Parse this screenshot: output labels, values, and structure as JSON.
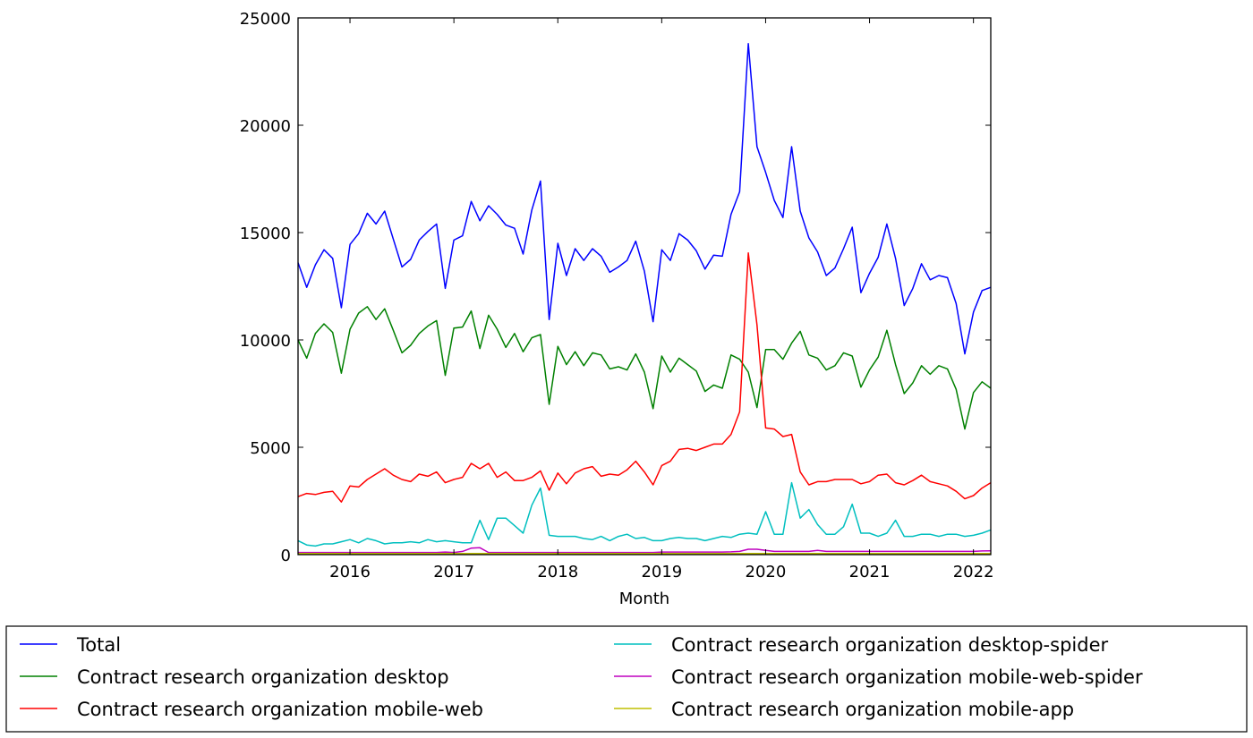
{
  "chart_data": {
    "type": "line",
    "title": "",
    "xlabel": "Month",
    "ylabel": "",
    "ylim": [
      0,
      25000
    ],
    "x_start": "2015-07",
    "x_end": "2022-03",
    "x_ticks": [
      "2016",
      "2017",
      "2018",
      "2019",
      "2020",
      "2021",
      "2022"
    ],
    "x_tick_month_index": [
      6,
      18,
      30,
      42,
      54,
      66,
      78
    ],
    "y_ticks": [
      "0",
      "5000",
      "10000",
      "15000",
      "20000",
      "25000"
    ],
    "y_tick_values": [
      0,
      5000,
      10000,
      15000,
      20000,
      25000
    ],
    "grid": false,
    "legend_placement": "below, two columns",
    "series": [
      {
        "name": "Total",
        "color": "#0000ff",
        "values": [
          13600,
          12450,
          13500,
          14200,
          13800,
          11500,
          14450,
          14950,
          15900,
          15400,
          16000,
          14700,
          13400,
          13750,
          14650,
          15050,
          15400,
          12400,
          14650,
          14850,
          16450,
          15550,
          16250,
          15850,
          15350,
          15200,
          14000,
          16050,
          17400,
          10950,
          14500,
          13000,
          14250,
          13700,
          14250,
          13900,
          13150,
          13400,
          13700,
          14600,
          13200,
          10850,
          14200,
          13700,
          14950,
          14650,
          14150,
          13300,
          13950,
          13900,
          15850,
          16900,
          23800,
          19000,
          17800,
          16500,
          15700,
          19000,
          16000,
          14750,
          14100,
          13000,
          13350,
          14250,
          15250,
          12200,
          13100,
          13850,
          15400,
          13800,
          11600,
          12400,
          13550,
          12800,
          13000,
          12900,
          11700,
          9350,
          11300,
          12300,
          12450
        ]
      },
      {
        "name": "Contract research organization desktop",
        "color": "#008000",
        "values": [
          10000,
          9150,
          10300,
          10750,
          10350,
          8450,
          10500,
          11250,
          11550,
          10950,
          11450,
          10450,
          9400,
          9750,
          10300,
          10650,
          10900,
          8350,
          10550,
          10600,
          11350,
          9600,
          11150,
          10500,
          9650,
          10300,
          9450,
          10100,
          10250,
          7000,
          9700,
          8850,
          9450,
          8800,
          9400,
          9300,
          8650,
          8750,
          8600,
          9350,
          8500,
          6800,
          9250,
          8500,
          9150,
          8850,
          8550,
          7600,
          7900,
          7750,
          9300,
          9100,
          8500,
          6850,
          9550,
          9550,
          9100,
          9850,
          10400,
          9300,
          9150,
          8600,
          8800,
          9400,
          9250,
          7800,
          8600,
          9200,
          10450,
          8850,
          7500,
          8000,
          8800,
          8400,
          8800,
          8650,
          7700,
          5850,
          7550,
          8050,
          7750
        ]
      },
      {
        "name": "Contract research organization mobile-web",
        "color": "#ff0000",
        "values": [
          2700,
          2850,
          2800,
          2900,
          2950,
          2450,
          3200,
          3150,
          3500,
          3750,
          4000,
          3700,
          3500,
          3400,
          3750,
          3650,
          3850,
          3350,
          3500,
          3600,
          4250,
          4000,
          4250,
          3600,
          3850,
          3450,
          3450,
          3600,
          3900,
          3000,
          3800,
          3300,
          3800,
          4000,
          4100,
          3650,
          3750,
          3700,
          3950,
          4350,
          3850,
          3250,
          4150,
          4350,
          4900,
          4950,
          4850,
          5000,
          5150,
          5150,
          5600,
          6650,
          14050,
          10700,
          5900,
          5850,
          5500,
          5600,
          3850,
          3250,
          3400,
          3400,
          3500,
          3500,
          3500,
          3300,
          3400,
          3700,
          3750,
          3350,
          3250,
          3450,
          3700,
          3400,
          3300,
          3200,
          2950,
          2600,
          2750,
          3100,
          3350
        ]
      },
      {
        "name": "Contract research organization desktop-spider",
        "color": "#00bfbf",
        "values": [
          650,
          450,
          400,
          500,
          500,
          600,
          700,
          550,
          750,
          650,
          500,
          550,
          550,
          600,
          550,
          700,
          600,
          650,
          600,
          550,
          550,
          1600,
          700,
          1700,
          1700,
          1350,
          1000,
          2300,
          3100,
          900,
          850,
          850,
          850,
          750,
          700,
          850,
          650,
          850,
          950,
          750,
          800,
          650,
          650,
          750,
          800,
          750,
          750,
          650,
          750,
          850,
          800,
          950,
          1000,
          950,
          2000,
          950,
          950,
          3350,
          1700,
          2100,
          1400,
          950,
          950,
          1300,
          2350,
          1000,
          1000,
          850,
          1000,
          1600,
          850,
          850,
          950,
          950,
          850,
          950,
          950,
          850,
          900,
          1000,
          1150
        ]
      },
      {
        "name": "Contract research organization mobile-web-spider",
        "color": "#bf00bf",
        "values": [
          100,
          100,
          100,
          100,
          100,
          100,
          100,
          100,
          100,
          100,
          100,
          100,
          100,
          100,
          100,
          100,
          100,
          120,
          100,
          150,
          300,
          320,
          100,
          100,
          100,
          100,
          100,
          100,
          100,
          100,
          100,
          100,
          100,
          100,
          100,
          100,
          100,
          100,
          100,
          100,
          100,
          100,
          120,
          120,
          120,
          120,
          120,
          120,
          120,
          120,
          130,
          150,
          250,
          250,
          200,
          150,
          150,
          150,
          150,
          150,
          200,
          150,
          150,
          150,
          150,
          150,
          150,
          150,
          150,
          150,
          150,
          150,
          150,
          150,
          150,
          150,
          150,
          150,
          150,
          170,
          180
        ]
      },
      {
        "name": "Contract research organization mobile-app",
        "color": "#bfbf00",
        "values": [
          50,
          50,
          50,
          50,
          50,
          50,
          50,
          50,
          50,
          50,
          50,
          50,
          50,
          50,
          50,
          50,
          50,
          50,
          50,
          50,
          50,
          50,
          50,
          50,
          50,
          50,
          50,
          50,
          50,
          50,
          50,
          50,
          50,
          50,
          50,
          50,
          50,
          50,
          50,
          50,
          50,
          50,
          50,
          50,
          50,
          50,
          50,
          50,
          50,
          50,
          50,
          50,
          50,
          50,
          50,
          50,
          50,
          50,
          50,
          50,
          50,
          50,
          50,
          50,
          50,
          50,
          50,
          50,
          50,
          50,
          50,
          50,
          50,
          50,
          50,
          50,
          50,
          50,
          50,
          50,
          50
        ]
      }
    ]
  }
}
